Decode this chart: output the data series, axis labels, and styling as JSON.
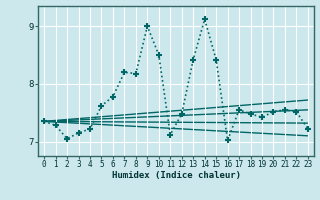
{
  "xlabel": "Humidex (Indice chaleur)",
  "background_color": "#cce8ed",
  "grid_color": "#b0d8de",
  "line_color": "#006666",
  "xlim": [
    -0.5,
    23.5
  ],
  "ylim": [
    6.75,
    9.35
  ],
  "yticks": [
    7,
    8,
    9
  ],
  "xticks": [
    0,
    1,
    2,
    3,
    4,
    5,
    6,
    7,
    8,
    9,
    10,
    11,
    12,
    13,
    14,
    15,
    16,
    17,
    18,
    19,
    20,
    21,
    22,
    23
  ],
  "main_series": {
    "x": [
      0,
      1,
      2,
      3,
      4,
      5,
      6,
      7,
      8,
      9,
      10,
      11,
      12,
      13,
      14,
      15,
      16,
      17,
      18,
      19,
      20,
      21,
      22,
      23
    ],
    "y": [
      7.35,
      7.28,
      7.05,
      7.15,
      7.22,
      7.62,
      7.78,
      8.2,
      8.18,
      9.0,
      8.5,
      7.12,
      7.48,
      8.42,
      9.12,
      8.42,
      7.02,
      7.55,
      7.48,
      7.42,
      7.52,
      7.55,
      7.52,
      7.22
    ],
    "linestyle": ":",
    "marker": "+",
    "markersize": 5,
    "linewidth": 1.2,
    "markeredgewidth": 1.5
  },
  "regression_lines": [
    {
      "x": [
        0,
        23
      ],
      "y": [
        7.35,
        7.1
      ],
      "linewidth": 1.0
    },
    {
      "x": [
        0,
        23
      ],
      "y": [
        7.35,
        7.32
      ],
      "linewidth": 1.0
    },
    {
      "x": [
        0,
        23
      ],
      "y": [
        7.35,
        7.55
      ],
      "linewidth": 1.0
    },
    {
      "x": [
        0,
        23
      ],
      "y": [
        7.35,
        7.72
      ],
      "linewidth": 1.0
    }
  ]
}
